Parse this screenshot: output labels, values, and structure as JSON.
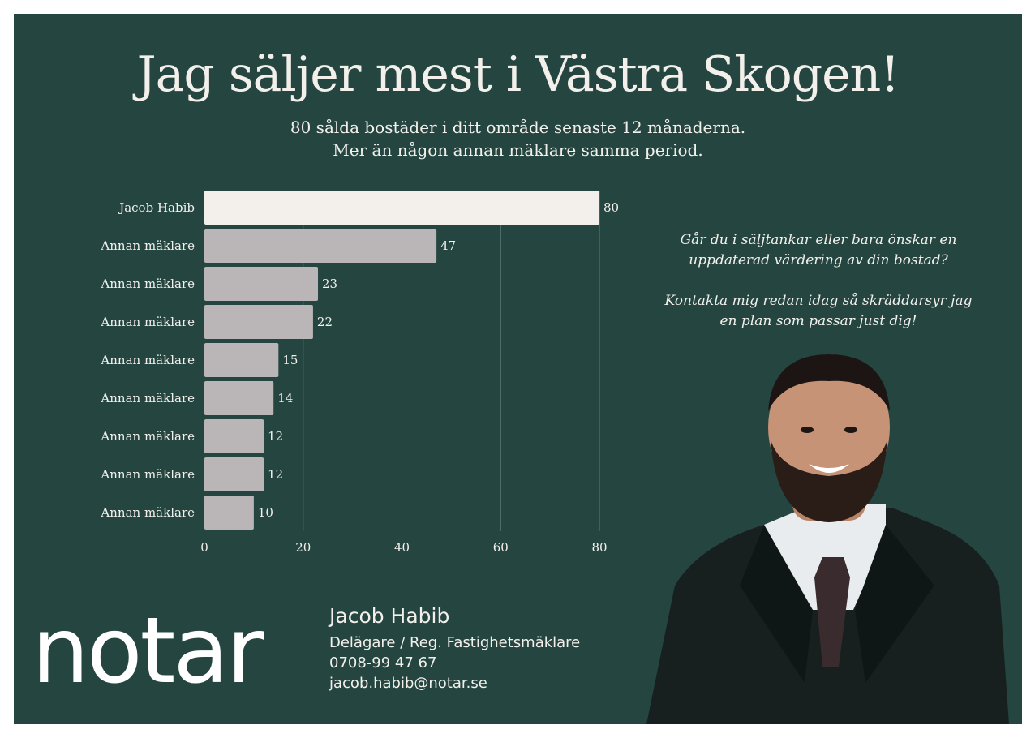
{
  "headline": "Jag säljer mest i Västra Skogen!",
  "subtitle_line1": "80 sålda bostäder i ditt område senaste 12 månaderna.",
  "subtitle_line2": "Mer än någon annan mäklare samma period.",
  "pitch": {
    "q1": "Går du i säljtankar eller bara önskar en",
    "q2": "uppdaterad  värdering av din bostad?",
    "c1": "Kontakta mig redan idag så skräddarsyr jag",
    "c2": "en plan som passar just dig!"
  },
  "logo": "notar",
  "agent": {
    "name": "Jacob Habib",
    "title": "Delägare / Reg. Fastighetsmäklare",
    "phone": "0708-99 47 67",
    "email": "jacob.habib@notar.se"
  },
  "colors": {
    "background": "#254541",
    "highlight_bar": "#f3f0eb",
    "other_bar": "#bab6b7",
    "text": "#f3f0eb"
  },
  "chart_data": {
    "type": "bar",
    "orientation": "horizontal",
    "categories": [
      "Jacob Habib",
      "Annan mäklare",
      "Annan mäklare",
      "Annan mäklare",
      "Annan mäklare",
      "Annan mäklare",
      "Annan mäklare",
      "Annan mäklare",
      "Annan mäklare"
    ],
    "values": [
      80,
      47,
      23,
      22,
      15,
      14,
      12,
      12,
      10
    ],
    "highlight_index": 0,
    "xlim": [
      0,
      80
    ],
    "xticks": [
      0,
      20,
      40,
      60,
      80
    ],
    "grid": "vertical",
    "legend": "none"
  }
}
